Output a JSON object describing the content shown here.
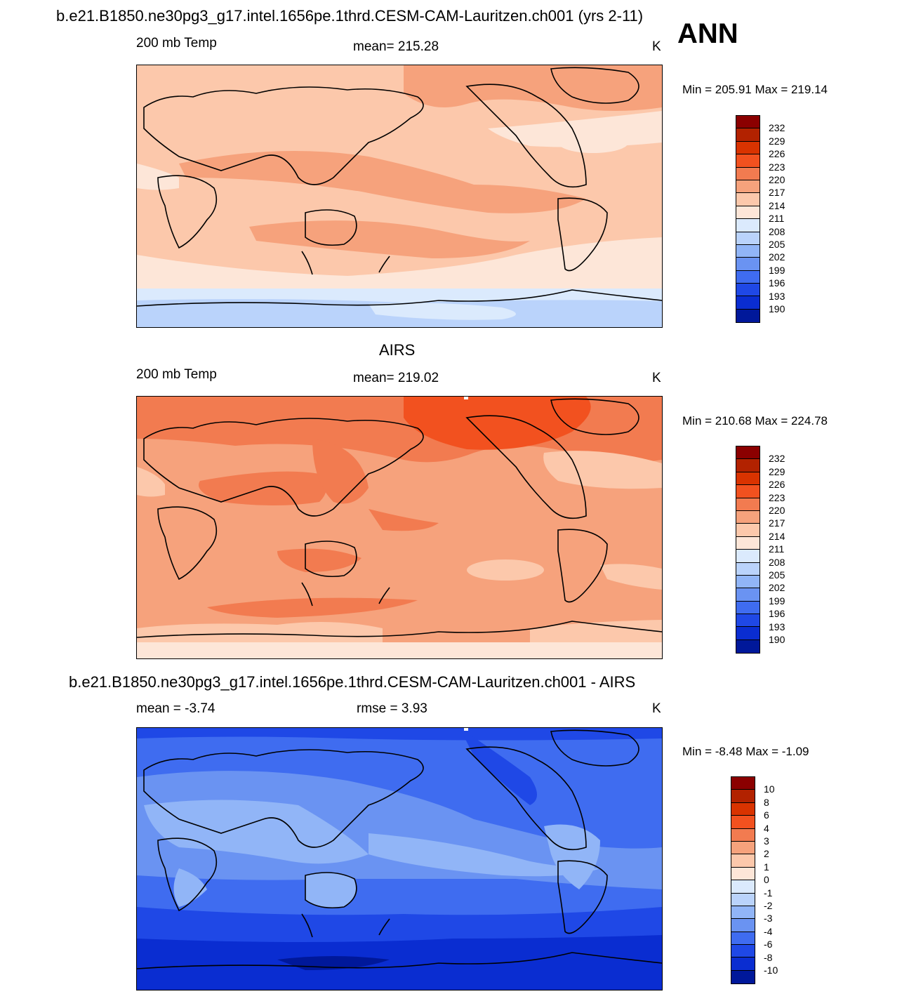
{
  "figure": {
    "title": "b.e21.B1850.ne30pg3_g17.intel.1656pe.1thrd.CESM-CAM-Lauritzen.ch001 (yrs 2-11)",
    "season": "ANN"
  },
  "panels": [
    {
      "title": "",
      "variable": "200 mb Temp",
      "stat": "mean= 215.28",
      "units": "K",
      "minmax": "Min = 205.91 Max = 219.14"
    },
    {
      "title": "AIRS",
      "variable": "200 mb Temp",
      "stat": "mean= 219.02",
      "units": "K",
      "minmax": "Min = 210.68 Max = 224.78"
    },
    {
      "title": "b.e21.B1850.ne30pg3_g17.intel.1656pe.1thrd.CESM-CAM-Lauritzen.ch001 - AIRS",
      "variable": "mean =  -3.74",
      "stat": "rmse =   3.93",
      "units": "K",
      "minmax": "Min =  -8.48 Max =  -1.09"
    }
  ],
  "colorbars": {
    "temperature": {
      "colors": [
        "#8b0000",
        "#b22200",
        "#d93300",
        "#f2511f",
        "#f27b50",
        "#f6a27c",
        "#fcc8ab",
        "#fde6d8",
        "#dbeafd",
        "#bad3fb",
        "#91b5f7",
        "#6a93f2",
        "#3f6cf0",
        "#1f48e6",
        "#0a2dd1",
        "#00189a"
      ],
      "labels": [
        "232",
        "229",
        "226",
        "223",
        "220",
        "217",
        "214",
        "211",
        "208",
        "205",
        "202",
        "199",
        "196",
        "193",
        "190"
      ]
    },
    "difference": {
      "colors": [
        "#8b0000",
        "#b22200",
        "#d93300",
        "#f2511f",
        "#f27b50",
        "#f6a27c",
        "#fcc8ab",
        "#fde6d8",
        "#dbeafd",
        "#bad3fb",
        "#91b5f7",
        "#6a93f2",
        "#3f6cf0",
        "#1f48e6",
        "#0a2dd1",
        "#00189a"
      ],
      "labels": [
        "10",
        "8",
        "6",
        "4",
        "3",
        "2",
        "1",
        "0",
        "-1",
        "-2",
        "-3",
        "-4",
        "-6",
        "-8",
        "-10"
      ]
    }
  }
}
